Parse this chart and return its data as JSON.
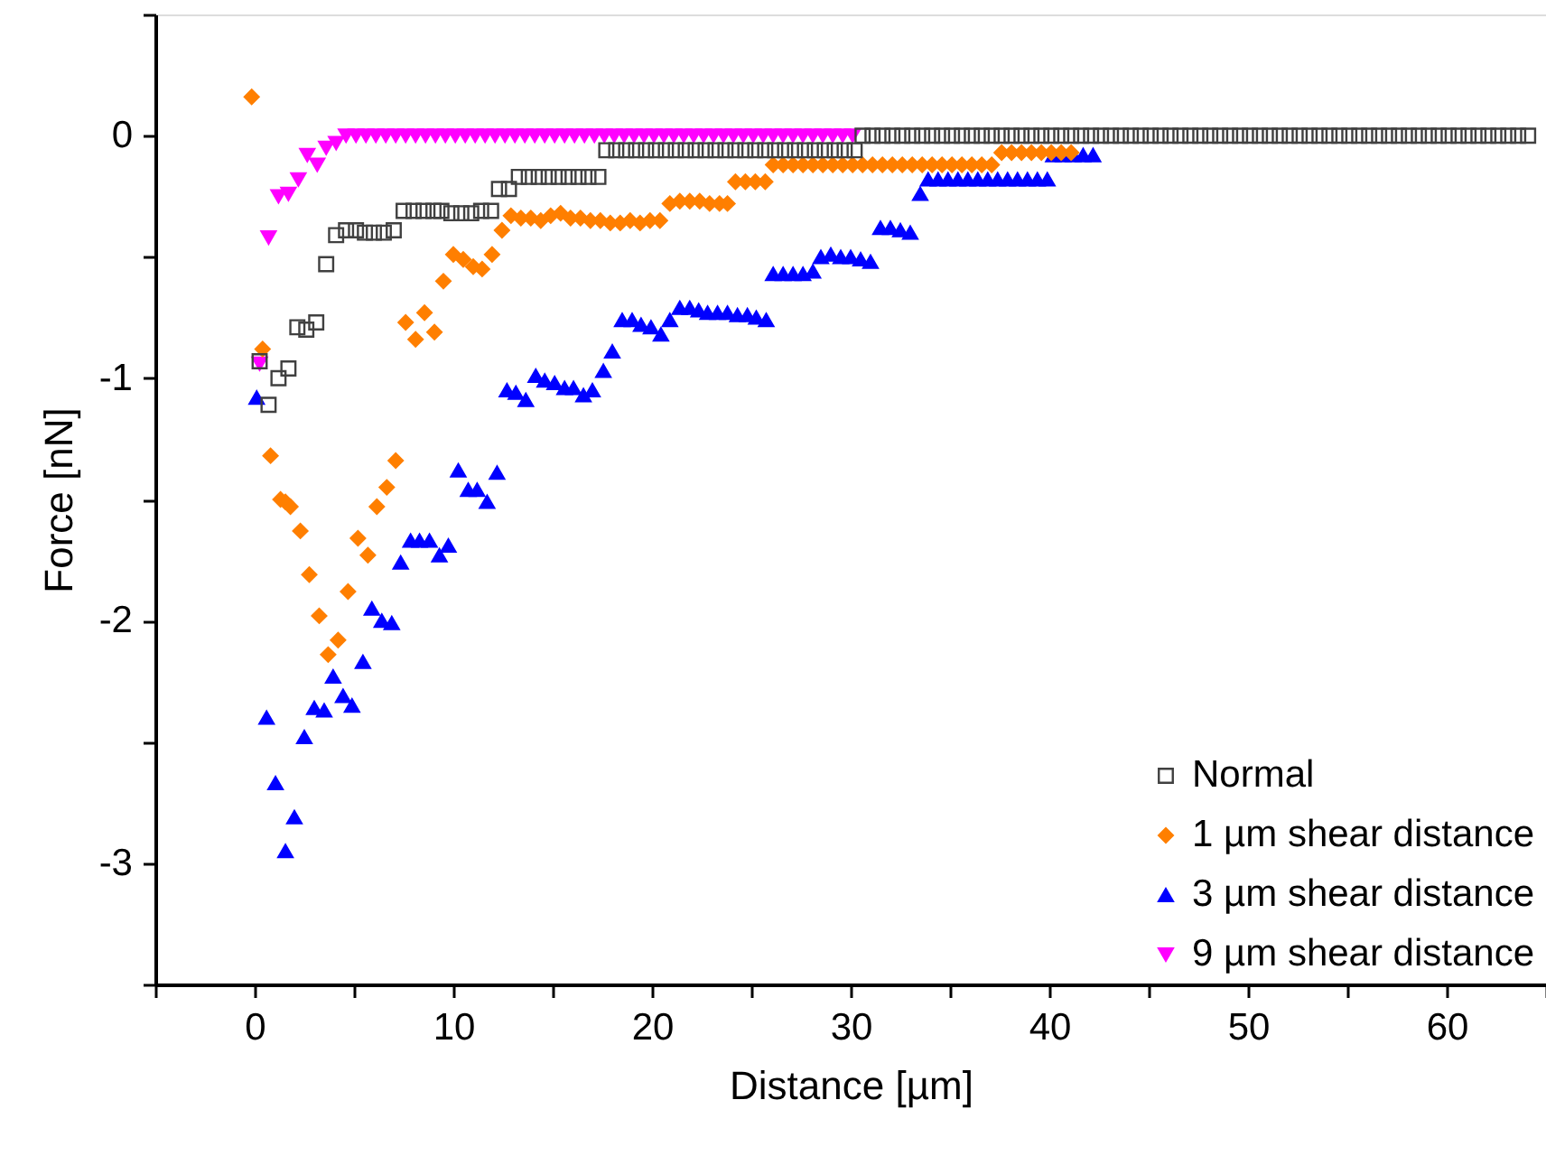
{
  "chart_data": {
    "type": "scatter",
    "xlabel": "Distance [µm]",
    "ylabel": "Force [nN]",
    "xlim": [
      -5,
      65
    ],
    "xticks": [
      {
        "value": -5,
        "label": null
      },
      0,
      {
        "value": 5,
        "label": null
      },
      10,
      {
        "value": 15,
        "label": null
      },
      20,
      {
        "value": 25,
        "label": null
      },
      30,
      {
        "value": 35,
        "label": null
      },
      40,
      {
        "value": 45,
        "label": null
      },
      50,
      {
        "value": 55,
        "label": null
      },
      60,
      {
        "value": 65,
        "label": null
      }
    ],
    "ylim": [
      -3.5,
      0.5
    ],
    "yticks": [
      {
        "value": -3.5,
        "label": null
      },
      -3,
      {
        "value": -2.5,
        "label": null
      },
      -2,
      {
        "value": -1.5,
        "label": null
      },
      -1,
      {
        "value": -0.5,
        "label": null
      },
      0,
      {
        "value": 0.5,
        "label": null
      }
    ],
    "grid": false,
    "legend": "bottom right",
    "series": [
      {
        "name": "Normal",
        "color": "#404040",
        "marker": "square",
        "x": [
          0.25,
          0.7,
          1.2,
          1.7,
          2.15,
          2.6,
          3.1,
          3.6,
          4.1,
          4.6,
          5.1,
          5.55,
          6.0,
          6.5,
          7.0,
          7.5,
          8.0,
          8.5,
          9.0,
          9.4,
          9.9,
          10.4,
          10.9,
          11.4,
          11.9,
          12.3,
          12.8,
          13.3,
          13.8,
          14.3,
          14.8,
          15.3,
          15.8,
          16.3,
          16.8,
          17.3,
          17.7,
          18.2,
          18.7,
          19.2,
          19.7,
          20.2,
          20.7,
          21.2,
          21.7,
          22.2,
          22.7,
          23.2,
          23.7,
          24.2,
          24.7,
          25.2,
          25.7,
          26.2,
          26.7,
          27.2,
          27.7,
          28.2,
          28.7,
          29.2,
          29.7,
          30.2,
          30.6,
          31.1,
          31.6,
          32.1,
          32.6,
          33.1,
          33.6,
          34.1,
          34.6,
          35.1,
          35.6,
          36.1,
          36.6,
          37.1,
          37.6,
          38.1,
          38.6,
          39.1,
          39.6,
          40.1,
          40.6,
          41.1,
          41.6,
          42.1,
          42.6,
          43.1,
          43.6,
          44.1,
          44.6,
          45.1,
          45.6,
          46.1,
          46.6,
          47.1,
          47.6,
          48.1,
          48.6,
          49.1,
          49.6,
          50.1,
          50.6,
          51.1,
          51.6,
          52.1,
          52.6,
          53.1,
          53.6,
          54.1,
          54.6,
          55.1,
          55.6,
          56.1,
          56.6,
          57.1,
          57.6,
          58.1,
          58.6,
          59.1,
          59.6,
          60.1,
          60.6,
          61.1,
          61.6,
          62.1,
          62.6,
          63.1,
          63.6,
          64.1
        ],
        "values": [
          -0.93,
          -1.11,
          -1.0,
          -0.96,
          -0.79,
          -0.8,
          -0.77,
          -0.53,
          -0.41,
          -0.39,
          -0.39,
          -0.4,
          -0.4,
          -0.4,
          -0.39,
          -0.31,
          -0.31,
          -0.31,
          -0.31,
          -0.31,
          -0.32,
          -0.32,
          -0.32,
          -0.31,
          -0.31,
          -0.22,
          -0.22,
          -0.17,
          -0.17,
          -0.17,
          -0.17,
          -0.17,
          -0.17,
          -0.17,
          -0.17,
          -0.17,
          -0.06,
          -0.06,
          -0.06,
          -0.06,
          -0.06,
          -0.06,
          -0.06,
          -0.06,
          -0.06,
          -0.06,
          -0.06,
          -0.06,
          -0.06,
          -0.06,
          -0.06,
          -0.06,
          -0.06,
          -0.06,
          -0.06,
          -0.06,
          -0.06,
          -0.06,
          -0.06,
          -0.06,
          -0.06,
          -0.06,
          0,
          0,
          0,
          0,
          0,
          0,
          0,
          0,
          0,
          0,
          0,
          0,
          0,
          0,
          0,
          0,
          0,
          0,
          0,
          0,
          0,
          0,
          0,
          0,
          0,
          0,
          0,
          0,
          0,
          0,
          0,
          0,
          0,
          0,
          0,
          0,
          0,
          0,
          0,
          0,
          0,
          0,
          0,
          0,
          0,
          0,
          0,
          0,
          0,
          0,
          0,
          0,
          0,
          0,
          0,
          0,
          0,
          0,
          0,
          0,
          0,
          0,
          0,
          0,
          0,
          0,
          0,
          0
        ]
      },
      {
        "name": "1 µm shear distance",
        "color": "#ff7f00",
        "marker": "diamond",
        "x": [
          -0.15,
          0.4,
          0.8,
          1.3,
          1.55,
          1.8,
          2.3,
          2.75,
          3.25,
          3.7,
          4.2,
          4.7,
          5.2,
          5.7,
          6.15,
          6.65,
          7.1,
          7.6,
          8.1,
          8.55,
          9.05,
          9.5,
          10.0,
          10.5,
          11.0,
          11.45,
          11.95,
          12.45,
          12.9,
          13.4,
          13.9,
          14.4,
          14.9,
          15.4,
          15.9,
          16.4,
          16.9,
          17.4,
          17.9,
          18.4,
          18.9,
          19.4,
          19.9,
          20.4,
          20.9,
          21.4,
          21.9,
          22.4,
          22.9,
          23.4,
          23.8,
          24.2,
          24.7,
          25.2,
          25.7,
          26.1,
          26.6,
          27.1,
          27.6,
          28.1,
          28.6,
          29.1,
          29.6,
          30.1,
          30.6,
          31.1,
          31.6,
          32.1,
          32.6,
          33.1,
          33.6,
          34.1,
          34.6,
          35.1,
          35.6,
          36.1,
          36.6,
          37.1,
          37.6,
          38.1,
          38.6,
          39.1,
          39.6,
          40.1,
          40.6,
          41.1
        ],
        "values": [
          0.16,
          -0.88,
          -1.32,
          -1.5,
          -1.51,
          -1.53,
          -1.63,
          -1.81,
          -1.98,
          -2.14,
          -2.08,
          -1.88,
          -1.66,
          -1.73,
          -1.53,
          -1.45,
          -1.34,
          -0.77,
          -0.84,
          -0.73,
          -0.81,
          -0.6,
          -0.49,
          -0.51,
          -0.54,
          -0.55,
          -0.49,
          -0.39,
          -0.33,
          -0.34,
          -0.34,
          -0.35,
          -0.33,
          -0.32,
          -0.34,
          -0.34,
          -0.35,
          -0.35,
          -0.36,
          -0.36,
          -0.35,
          -0.36,
          -0.35,
          -0.35,
          -0.28,
          -0.27,
          -0.27,
          -0.27,
          -0.28,
          -0.28,
          -0.28,
          -0.19,
          -0.19,
          -0.19,
          -0.19,
          -0.12,
          -0.12,
          -0.12,
          -0.12,
          -0.12,
          -0.12,
          -0.12,
          -0.12,
          -0.12,
          -0.12,
          -0.12,
          -0.12,
          -0.12,
          -0.12,
          -0.12,
          -0.12,
          -0.12,
          -0.12,
          -0.12,
          -0.12,
          -0.12,
          -0.12,
          -0.12,
          -0.07,
          -0.07,
          -0.07,
          -0.07,
          -0.07,
          -0.07,
          -0.07,
          -0.07
        ]
      },
      {
        "name": "3 µm shear distance",
        "color": "#0000ff",
        "marker": "triangle",
        "x": [
          0.1,
          0.6,
          1.05,
          1.55,
          2.0,
          2.5,
          3.0,
          3.5,
          3.95,
          4.45,
          4.9,
          5.45,
          5.9,
          6.4,
          6.9,
          7.35,
          7.85,
          8.3,
          8.8,
          9.3,
          9.75,
          10.25,
          10.75,
          11.2,
          11.7,
          12.2,
          12.7,
          13.15,
          13.65,
          14.15,
          14.6,
          15.1,
          15.6,
          16.05,
          16.55,
          17.0,
          17.55,
          18.0,
          18.5,
          19.0,
          19.45,
          19.95,
          20.45,
          20.9,
          21.4,
          21.9,
          22.35,
          22.8,
          23.3,
          23.8,
          24.3,
          24.8,
          25.25,
          25.75,
          26.1,
          26.6,
          27.1,
          27.6,
          28.1,
          28.5,
          29.0,
          29.5,
          30.0,
          30.5,
          31.0,
          31.5,
          32.0,
          32.5,
          33.0,
          33.5,
          33.9,
          34.4,
          34.9,
          35.4,
          35.9,
          36.4,
          36.9,
          37.4,
          37.9,
          38.4,
          38.9,
          39.4,
          39.9,
          40.2,
          40.7,
          41.2,
          41.7,
          42.2
        ],
        "values": [
          -1.08,
          -2.4,
          -2.67,
          -2.95,
          -2.81,
          -2.48,
          -2.36,
          -2.37,
          -2.23,
          -2.31,
          -2.35,
          -2.17,
          -1.95,
          -2.0,
          -2.01,
          -1.76,
          -1.67,
          -1.67,
          -1.67,
          -1.73,
          -1.69,
          -1.38,
          -1.46,
          -1.46,
          -1.51,
          -1.39,
          -1.05,
          -1.06,
          -1.09,
          -0.99,
          -1.01,
          -1.02,
          -1.04,
          -1.04,
          -1.07,
          -1.05,
          -0.97,
          -0.89,
          -0.76,
          -0.76,
          -0.78,
          -0.79,
          -0.82,
          -0.76,
          -0.71,
          -0.71,
          -0.72,
          -0.73,
          -0.73,
          -0.73,
          -0.74,
          -0.74,
          -0.75,
          -0.76,
          -0.57,
          -0.57,
          -0.57,
          -0.57,
          -0.56,
          -0.5,
          -0.49,
          -0.5,
          -0.5,
          -0.51,
          -0.52,
          -0.38,
          -0.38,
          -0.39,
          -0.4,
          -0.24,
          -0.18,
          -0.18,
          -0.18,
          -0.18,
          -0.18,
          -0.18,
          -0.18,
          -0.18,
          -0.18,
          -0.18,
          -0.18,
          -0.18,
          -0.18,
          -0.08,
          -0.08,
          -0.08,
          -0.08,
          -0.08
        ]
      },
      {
        "name": "9 µm shear distance",
        "color": "#ff00ff",
        "marker": "triangle-down",
        "x": [
          0.25,
          0.7,
          1.2,
          1.7,
          2.2,
          2.65,
          3.15,
          3.6,
          4.1,
          4.6,
          5.1,
          5.6,
          6.1,
          6.6,
          7.1,
          7.6,
          8.1,
          8.6,
          9.1,
          9.6,
          10.1,
          10.6,
          11.1,
          11.6,
          12.1,
          12.6,
          13.1,
          13.6,
          14.1,
          14.6,
          15.1,
          15.6,
          16.1,
          16.6,
          17.1,
          17.6,
          18.1,
          18.6,
          19.1,
          19.6,
          20.1,
          20.6,
          21.1,
          21.6,
          22.1,
          22.6,
          23.1,
          23.6,
          24.1,
          24.6,
          25.1,
          25.6,
          26.1,
          26.6,
          27.1,
          27.6,
          28.1,
          28.6,
          29.1,
          29.6,
          30.1
        ],
        "values": [
          -0.94,
          -0.42,
          -0.25,
          -0.24,
          -0.18,
          -0.08,
          -0.12,
          -0.05,
          -0.03,
          0,
          0,
          0,
          0,
          0,
          0,
          0,
          0,
          0,
          0,
          0,
          0,
          0,
          0,
          0,
          0,
          0,
          0,
          0,
          0,
          0,
          0,
          0,
          0,
          0,
          0,
          0,
          0,
          0,
          0,
          0,
          0,
          0,
          0,
          0,
          0,
          0,
          0,
          0,
          0,
          0,
          0,
          0,
          0,
          0,
          0,
          0,
          0,
          0,
          0,
          0,
          0
        ]
      }
    ]
  }
}
